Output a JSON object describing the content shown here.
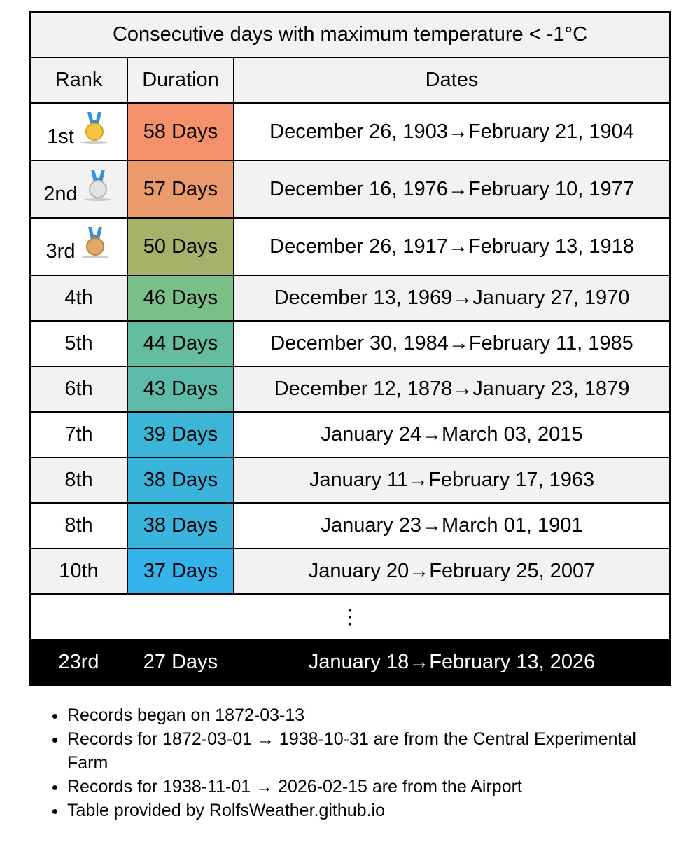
{
  "table": {
    "title": "Consecutive days with maximum temperature < -1°C",
    "headers": [
      "Rank",
      "Duration",
      "Dates"
    ],
    "rows": [
      {
        "rank": "1st",
        "duration": "58 Days",
        "dates": "December 26, 1903→February 21, 1904",
        "color": "#f4906a"
      },
      {
        "rank": "2nd",
        "duration": "57 Days",
        "dates": "December 16, 1976→February 10, 1977",
        "color": "#eb9a6b"
      },
      {
        "rank": "3rd",
        "duration": "50 Days",
        "dates": "December 26, 1917→February 13, 1918",
        "color": "#a4b26a"
      },
      {
        "rank": "4th",
        "duration": "46 Days",
        "dates": "December 13, 1969→January 27, 1970",
        "color": "#7bbf88"
      },
      {
        "rank": "5th",
        "duration": "44 Days",
        "dates": "December 30, 1984→February 11, 1985",
        "color": "#65bd9f"
      },
      {
        "rank": "6th",
        "duration": "43 Days",
        "dates": "December 12, 1878→January 23, 1879",
        "color": "#5cbba9"
      },
      {
        "rank": "7th",
        "duration": "39 Days",
        "dates": "January 24→March 03, 2015",
        "color": "#3cb6d8"
      },
      {
        "rank": "8th",
        "duration": "38 Days",
        "dates": "January 11→February 17, 1963",
        "color": "#3bb4dd"
      },
      {
        "rank": "8th",
        "duration": "38 Days",
        "dates": "January 23→March 01, 1901",
        "color": "#3bb4dd"
      },
      {
        "rank": "10th",
        "duration": "37 Days",
        "dates": "January 20→February 25, 2007",
        "color": "#34b3ea"
      }
    ],
    "ellipsis": "⋮",
    "current": {
      "rank": "23rd",
      "duration": "27 Days",
      "dates": "January 18→February 13, 2026"
    }
  },
  "notes": [
    "Records began on 1872-03-13",
    "Records for 1872-03-01 → 1938-10-31 are from the Central Experimental Farm",
    "Records for 1938-11-01 → 2026-02-15 are from the Airport",
    "Table provided by RolfsWeather.github.io"
  ]
}
